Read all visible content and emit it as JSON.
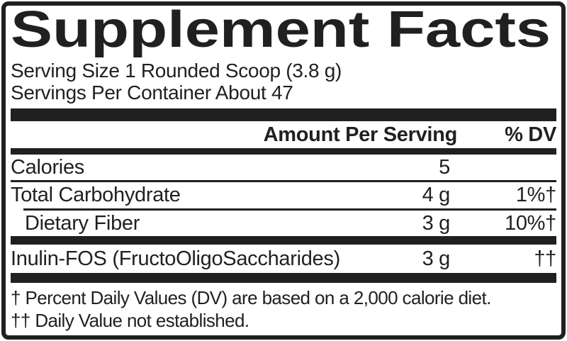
{
  "panel": {
    "title": "Supplement Facts",
    "serving_size": "Serving Size 1 Rounded Scoop (3.8 g)",
    "servings_per_container": "Servings Per Container About 47",
    "columns": {
      "amount_header": "Amount Per Serving",
      "dv_header": "% DV"
    },
    "rows": [
      {
        "name": "Calories",
        "amount": "5",
        "dv": ""
      },
      {
        "name": "Total Carbohydrate",
        "amount": "4 g",
        "dv": "1%†"
      },
      {
        "name": "Dietary Fiber",
        "amount": "3 g",
        "dv": "10%†"
      },
      {
        "name": "Inulin-FOS (FructoOligoSaccharides)",
        "amount": "3 g",
        "dv": "††"
      }
    ],
    "footnotes": [
      "† Percent Daily Values (DV) are based on a 2,000 calorie diet.",
      "†† Daily Value not established."
    ]
  },
  "colors": {
    "ink": "#221f20",
    "background": "#ffffff"
  }
}
